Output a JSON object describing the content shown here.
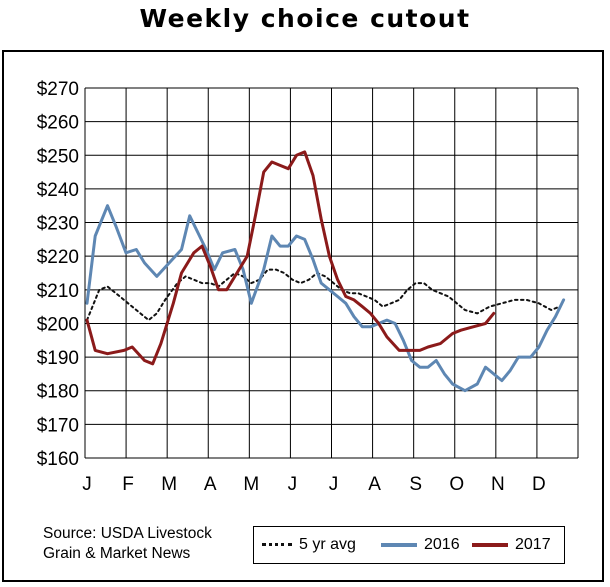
{
  "chart_data": {
    "type": "line",
    "title": "Weekly choice cutout",
    "xlabel": "",
    "ylabel": "",
    "ylim": [
      160,
      270
    ],
    "yticks": [
      "$270",
      "$260",
      "$250",
      "$240",
      "$230",
      "$220",
      "$210",
      "$200",
      "$190",
      "$180",
      "$170",
      "$160"
    ],
    "xticks": [
      "J",
      "F",
      "M",
      "A",
      "M",
      "J",
      "J",
      "A",
      "S",
      "O",
      "N",
      "D"
    ],
    "grid": true,
    "legend_position": "bottom-right",
    "source": [
      "Source: USDA Livestock",
      "Grain & Market News"
    ],
    "series": [
      {
        "name": "5 yr avg",
        "style": "dotted",
        "color": "#111111",
        "x": [
          0,
          0.3,
          0.5,
          0.8,
          1.0,
          1.2,
          1.5,
          1.7,
          1.9,
          2.2,
          2.4,
          2.6,
          2.8,
          3.0,
          3.2,
          3.4,
          3.6,
          3.8,
          4.0,
          4.2,
          4.4,
          4.6,
          4.8,
          5.0,
          5.2,
          5.4,
          5.6,
          5.8,
          6.0,
          6.2,
          6.4,
          6.6,
          6.8,
          7.0,
          7.2,
          7.4,
          7.6,
          7.8,
          8.0,
          8.2,
          8.4,
          8.6,
          8.8,
          9.0,
          9.2,
          9.5,
          9.8,
          10.1,
          10.4,
          10.7,
          11.0,
          11.3,
          11.5
        ],
        "values": [
          201,
          210,
          211,
          208,
          206,
          204,
          201,
          203,
          207,
          212,
          214,
          213,
          212,
          212,
          211,
          213,
          215,
          214,
          212,
          213,
          216,
          216,
          215,
          213,
          212,
          213,
          215,
          214,
          212,
          210,
          209,
          209,
          208,
          207,
          205,
          206,
          207,
          210,
          212,
          212,
          210,
          209,
          208,
          206,
          204,
          203,
          205,
          206,
          207,
          207,
          206,
          204,
          205
        ]
      },
      {
        "name": "2016",
        "color": "#5e87b3",
        "x": [
          0,
          0.2,
          0.5,
          0.7,
          0.95,
          1.2,
          1.4,
          1.7,
          2.0,
          2.3,
          2.5,
          2.7,
          2.9,
          3.1,
          3.3,
          3.6,
          3.8,
          4.0,
          4.3,
          4.5,
          4.7,
          4.9,
          5.1,
          5.3,
          5.5,
          5.7,
          5.9,
          6.1,
          6.3,
          6.5,
          6.7,
          6.9,
          7.1,
          7.3,
          7.5,
          7.7,
          7.9,
          8.1,
          8.3,
          8.5,
          8.7,
          8.9,
          9.2,
          9.5,
          9.7,
          9.9,
          10.1,
          10.3,
          10.5,
          10.8,
          11.0,
          11.2,
          11.4,
          11.6
        ],
        "values": [
          206,
          226,
          235,
          229,
          221,
          222,
          218,
          214,
          218,
          222,
          232,
          227,
          222,
          216,
          221,
          222,
          216,
          206,
          216,
          226,
          223,
          223,
          226,
          225,
          219,
          212,
          210,
          208,
          206,
          202,
          199,
          199,
          200,
          201,
          200,
          195,
          189,
          187,
          187,
          189,
          185,
          182,
          180,
          182,
          187,
          185,
          183,
          186,
          190,
          190,
          193,
          198,
          202,
          207
        ]
      },
      {
        "name": "2017",
        "color": "#8b1a1a",
        "x": [
          0,
          0.2,
          0.5,
          0.9,
          1.1,
          1.4,
          1.6,
          1.8,
          2.1,
          2.3,
          2.6,
          2.8,
          3.0,
          3.2,
          3.4,
          3.6,
          3.9,
          4.1,
          4.3,
          4.5,
          4.7,
          4.9,
          5.1,
          5.3,
          5.5,
          5.7,
          5.9,
          6.1,
          6.3,
          6.5,
          6.7,
          6.9,
          7.1,
          7.3,
          7.6,
          7.9,
          8.1,
          8.3,
          8.6,
          8.9,
          9.1,
          9.4,
          9.7,
          9.9
        ],
        "values": [
          201,
          192,
          191,
          192,
          193,
          189,
          188,
          194,
          206,
          215,
          221,
          223,
          217,
          210,
          210,
          214,
          220,
          232,
          245,
          248,
          247,
          246,
          250,
          251,
          244,
          231,
          220,
          213,
          208,
          207,
          205,
          203,
          200,
          196,
          192,
          192,
          192,
          193,
          194,
          197,
          198,
          199,
          200,
          203
        ]
      }
    ]
  }
}
